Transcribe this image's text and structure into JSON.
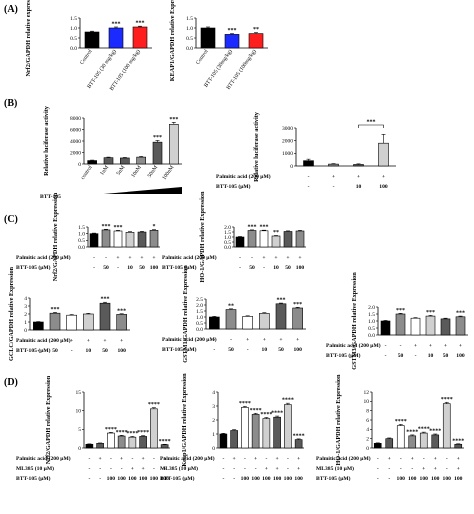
{
  "panel_labels": [
    "(A)",
    "(B)",
    "(C)",
    "(D)"
  ],
  "colors": {
    "black": "#000000",
    "blue": "#1b2bff",
    "red": "#ff1e1e",
    "dgray": "#5a5a5a",
    "mgray": "#8c8c8c",
    "lgray": "#d0d0d0",
    "white": "#ffffff"
  },
  "chart_data": [
    {
      "id": "a1",
      "type": "bar",
      "ylabel": "Nrf2/GAPDH relative expression",
      "categories": [
        "Control",
        "BTT-105 (30 mg/kg)",
        "BTT-105 (100 mg/kg)"
      ],
      "values": [
        0.8,
        1.0,
        1.05
      ],
      "errors": [
        0.04,
        0.05,
        0.04
      ],
      "sig": [
        "",
        "***",
        "***"
      ],
      "colors": [
        "#000000",
        "#1b2bff",
        "#ff1e1e"
      ],
      "ylim": [
        0,
        1.5
      ],
      "yticks": [
        "0.0",
        "0.5",
        "1.0",
        "1.5"
      ]
    },
    {
      "id": "a2",
      "type": "bar",
      "ylabel": "KEAP1/GAPDH relative Expression",
      "categories": [
        "Control",
        "BTT-105 (30mg/kg)",
        "BTT-105 (100mg/kg)"
      ],
      "values": [
        1.0,
        0.68,
        0.72
      ],
      "errors": [
        0.05,
        0.04,
        0.05
      ],
      "sig": [
        "",
        "***",
        "**"
      ],
      "colors": [
        "#000000",
        "#1b2bff",
        "#ff1e1e"
      ],
      "ylim": [
        0,
        1.5
      ],
      "yticks": [
        "0.0",
        "0.5",
        "1.0",
        "1.5"
      ]
    },
    {
      "id": "b1",
      "type": "bar",
      "ylabel": "Relative luciferase activity",
      "categories": [
        "control",
        "1nM",
        "5nM",
        "10nM",
        "50nM",
        "100nM"
      ],
      "values": [
        600,
        1100,
        1050,
        1200,
        3800,
        6900
      ],
      "errors": [
        80,
        100,
        90,
        120,
        300,
        350
      ],
      "sig": [
        "",
        "",
        "",
        "",
        "***",
        "***"
      ],
      "colors": [
        "#000000",
        "#5a5a5a",
        "#5a5a5a",
        "#8c8c8c",
        "#5a5a5a",
        "#d0d0d0"
      ],
      "ylim": [
        0,
        8000
      ],
      "yticks": [
        "0",
        "2000",
        "4000",
        "6000",
        "8000"
      ],
      "conditions": [
        {
          "label": "BTT-105",
          "values": []
        }
      ]
    },
    {
      "id": "b2",
      "type": "bar",
      "ylabel": "Relative luciferase activity",
      "categories": [
        "1",
        "2",
        "3",
        "4"
      ],
      "values": [
        420,
        150,
        120,
        1800
      ],
      "errors": [
        120,
        40,
        50,
        700
      ],
      "sig": [
        "",
        "",
        "",
        ""
      ],
      "bracket": "***",
      "colors": [
        "#000000",
        "#8c8c8c",
        "#5a5a5a",
        "#d0d0d0"
      ],
      "ylim": [
        0,
        3000
      ],
      "yticks": [
        "0",
        "1000",
        "2000",
        "3000"
      ],
      "conditions": [
        {
          "label": "Palmitic acid (200 μM)",
          "values": [
            "-",
            "+",
            "+",
            "+"
          ]
        },
        {
          "label": "BTT-105 (μM)",
          "values": [
            "-",
            "-",
            "10",
            "100"
          ]
        }
      ]
    },
    {
      "id": "c1",
      "type": "bar",
      "ylabel": "Nrf2/GAPDH relative Expression",
      "categories": [
        "1",
        "2",
        "3",
        "4",
        "5",
        "6"
      ],
      "values": [
        1.0,
        1.28,
        1.2,
        1.1,
        1.12,
        1.25
      ],
      "errors": [
        0.04,
        0.05,
        0.05,
        0.05,
        0.05,
        0.05
      ],
      "sig": [
        "",
        "***",
        "***",
        "",
        "",
        "*"
      ],
      "colors": [
        "#000000",
        "#8c8c8c",
        "#ffffff",
        "#d0d0d0",
        "#5a5a5a",
        "#8c8c8c"
      ],
      "ylim": [
        0,
        1.5
      ],
      "yticks": [
        "0.0",
        "0.5",
        "1.0",
        "1.5"
      ],
      "conditions": [
        {
          "label": "Palmitic acid (200 μM)",
          "values": [
            "-",
            "-",
            "+",
            "+",
            "+",
            "+"
          ]
        },
        {
          "label": "BTT-105 (μM)",
          "values": [
            "-",
            "50",
            "-",
            "10",
            "50",
            "100"
          ]
        }
      ]
    },
    {
      "id": "c2",
      "type": "bar",
      "ylabel": "HO-1/GAPDH relative Expression",
      "categories": [
        "1",
        "2",
        "3",
        "4",
        "5",
        "6"
      ],
      "values": [
        1.0,
        1.65,
        1.62,
        1.1,
        1.55,
        1.6
      ],
      "errors": [
        0.05,
        0.06,
        0.06,
        0.05,
        0.06,
        0.06
      ],
      "sig": [
        "",
        "***",
        "***",
        "**",
        "",
        ""
      ],
      "colors": [
        "#000000",
        "#8c8c8c",
        "#ffffff",
        "#d0d0d0",
        "#5a5a5a",
        "#8c8c8c"
      ],
      "ylim": [
        0,
        2.0
      ],
      "yticks": [
        "0.0",
        "0.5",
        "1.0",
        "1.5",
        "2.0"
      ],
      "conditions": [
        {
          "label": "Palmitic acid (200 μM)",
          "values": [
            "-",
            "-",
            "+",
            "+",
            "+",
            "+"
          ]
        },
        {
          "label": "BTT-105 (μM)",
          "values": [
            "-",
            "50",
            "-",
            "10",
            "50",
            "100"
          ]
        }
      ]
    },
    {
      "id": "c3",
      "type": "bar",
      "ylabel": "GCLC/GAPDH relative Expression",
      "categories": [
        "1",
        "2",
        "3",
        "4",
        "5",
        "6"
      ],
      "values": [
        1.0,
        2.1,
        1.85,
        2.0,
        3.35,
        1.95
      ],
      "errors": [
        0.05,
        0.1,
        0.08,
        0.08,
        0.12,
        0.08
      ],
      "sig": [
        "",
        "***",
        "",
        "",
        "***",
        "***"
      ],
      "colors": [
        "#000000",
        "#8c8c8c",
        "#ffffff",
        "#d0d0d0",
        "#5a5a5a",
        "#8c8c8c"
      ],
      "ylim": [
        0,
        4
      ],
      "yticks": [
        "0",
        "1",
        "2",
        "3",
        "4"
      ],
      "conditions": [
        {
          "label": "Palmitic acid (200 μM)",
          "values": [
            "-",
            "-",
            "+",
            "+",
            "+",
            "+"
          ]
        },
        {
          "label": "BTT-105 (μM)",
          "values": [
            "-",
            "50",
            "-",
            "10",
            "50",
            "100"
          ]
        }
      ]
    },
    {
      "id": "c4",
      "type": "bar",
      "ylabel": "GSTM1/GAPDH relative Expression",
      "categories": [
        "1",
        "2",
        "3",
        "4",
        "5",
        "6"
      ],
      "values": [
        1.0,
        1.62,
        1.05,
        1.3,
        2.1,
        1.75
      ],
      "errors": [
        0.05,
        0.06,
        0.05,
        0.06,
        0.06,
        0.06
      ],
      "sig": [
        "",
        "**",
        "",
        "",
        "***",
        "***"
      ],
      "colors": [
        "#000000",
        "#8c8c8c",
        "#ffffff",
        "#d0d0d0",
        "#5a5a5a",
        "#8c8c8c"
      ],
      "ylim": [
        0,
        2.5
      ],
      "yticks": [
        "0.0",
        "0.5",
        "1.0",
        "1.5",
        "2.0",
        "2.5"
      ],
      "conditions": [
        {
          "label": "Palmitic acid (200 μM)",
          "values": [
            "-",
            "-",
            "+",
            "+",
            "+",
            "+"
          ]
        },
        {
          "label": "BTT-105 (μM)",
          "values": [
            "-",
            "50",
            "-",
            "10",
            "50",
            "100"
          ]
        }
      ]
    },
    {
      "id": "c5",
      "type": "bar",
      "ylabel": "GSTM3/GAPDH relative Expression",
      "categories": [
        "1",
        "2",
        "3",
        "4",
        "5",
        "6"
      ],
      "values": [
        1.0,
        1.5,
        1.2,
        1.35,
        1.15,
        1.3
      ],
      "errors": [
        0.04,
        0.05,
        0.04,
        0.05,
        0.05,
        0.05
      ],
      "sig": [
        "",
        "***",
        "",
        "***",
        "",
        "***"
      ],
      "colors": [
        "#000000",
        "#8c8c8c",
        "#ffffff",
        "#d0d0d0",
        "#5a5a5a",
        "#8c8c8c"
      ],
      "ylim": [
        0,
        2.0
      ],
      "yticks": [
        "0.0",
        "0.5",
        "1.0",
        "1.5",
        "2.0"
      ],
      "conditions": [
        {
          "label": "Palmitic acid (200 μM)",
          "values": [
            "-",
            "-",
            "+",
            "+",
            "+",
            "+"
          ]
        },
        {
          "label": "BTT-105 (μM)",
          "values": [
            "-",
            "50",
            "-",
            "10",
            "50",
            "100"
          ]
        }
      ]
    },
    {
      "id": "d1",
      "type": "bar",
      "ylabel": "Nrf2/GAPDH relative Expression",
      "categories": [
        "1",
        "2",
        "3",
        "4",
        "5",
        "6",
        "7",
        "8"
      ],
      "values": [
        1.0,
        1.25,
        4.0,
        3.2,
        2.9,
        3.1,
        10.5,
        0.9
      ],
      "errors": [
        0.1,
        0.1,
        0.2,
        0.2,
        0.2,
        0.2,
        0.3,
        0.1
      ],
      "sig": [
        "",
        "",
        "****",
        "****",
        "****",
        "****",
        "****",
        "****"
      ],
      "colors": [
        "#000000",
        "#5a5a5a",
        "#ffffff",
        "#8c8c8c",
        "#d0d0d0",
        "#5a5a5a",
        "#d0d0d0",
        "#5a5a5a"
      ],
      "ylim": [
        0,
        15
      ],
      "yticks": [
        "0",
        "5",
        "10",
        "15"
      ],
      "conditions": [
        {
          "label": "Palmitic acid (200 μM)",
          "values": [
            "-",
            "+",
            "-",
            "+",
            "-",
            "+",
            "-",
            "+"
          ]
        },
        {
          "label": "ML385 (10 μM)",
          "values": [
            "-",
            "-",
            "-",
            "-",
            "+",
            "+",
            "-",
            "+"
          ]
        },
        {
          "label": "BTT-105 (μM)",
          "values": [
            "-",
            "-",
            "100",
            "100",
            "100",
            "100",
            "100",
            "100"
          ]
        }
      ]
    },
    {
      "id": "d2",
      "type": "bar",
      "ylabel": "Keap1/GAPDH relative Expression",
      "categories": [
        "1",
        "2",
        "3",
        "4",
        "5",
        "6",
        "7",
        "8"
      ],
      "values": [
        1.0,
        1.25,
        2.9,
        2.4,
        2.1,
        2.2,
        3.1,
        0.6
      ],
      "errors": [
        0.05,
        0.06,
        0.08,
        0.08,
        0.08,
        0.08,
        0.1,
        0.05
      ],
      "sig": [
        "",
        "",
        "****",
        "****",
        "****",
        "****",
        "****",
        "****"
      ],
      "colors": [
        "#000000",
        "#5a5a5a",
        "#ffffff",
        "#8c8c8c",
        "#d0d0d0",
        "#5a5a5a",
        "#d0d0d0",
        "#5a5a5a"
      ],
      "ylim": [
        0,
        4
      ],
      "yticks": [
        "0",
        "1",
        "2",
        "3",
        "4"
      ],
      "conditions": [
        {
          "label": "Palmitic acid (200 μM)",
          "values": [
            "-",
            "+",
            "-",
            "+",
            "-",
            "+",
            "-",
            "+"
          ]
        },
        {
          "label": "ML385 (10 μM)",
          "values": [
            "-",
            "-",
            "-",
            "-",
            "+",
            "+",
            "-",
            "+"
          ]
        },
        {
          "label": "BTT-105 (μM)",
          "values": [
            "-",
            "-",
            "100",
            "100",
            "100",
            "100",
            "100",
            "100"
          ]
        }
      ]
    },
    {
      "id": "d3",
      "type": "bar",
      "ylabel": "HO-1/GAPDH relative Expression",
      "categories": [
        "1",
        "2",
        "3",
        "4",
        "5",
        "6",
        "7",
        "8"
      ],
      "values": [
        1.0,
        2.0,
        4.8,
        2.6,
        3.2,
        2.8,
        9.5,
        0.8
      ],
      "errors": [
        0.1,
        0.15,
        0.25,
        0.2,
        0.2,
        0.2,
        0.3,
        0.1
      ],
      "sig": [
        "",
        "",
        "****",
        "****",
        "****",
        "****",
        "****",
        "****"
      ],
      "colors": [
        "#000000",
        "#5a5a5a",
        "#ffffff",
        "#8c8c8c",
        "#d0d0d0",
        "#5a5a5a",
        "#d0d0d0",
        "#5a5a5a"
      ],
      "ylim": [
        0,
        12
      ],
      "yticks": [
        "0",
        "2",
        "4",
        "6",
        "8",
        "10",
        "12"
      ],
      "conditions": [
        {
          "label": "Palmitic acid (200 μM)",
          "values": [
            "-",
            "+",
            "-",
            "+",
            "-",
            "+",
            "-",
            "+"
          ]
        },
        {
          "label": "ML385 (10 μM)",
          "values": [
            "-",
            "-",
            "-",
            "-",
            "+",
            "+",
            "-",
            "+"
          ]
        },
        {
          "label": "BTT-105 (μM)",
          "values": [
            "-",
            "-",
            "100",
            "100",
            "100",
            "100",
            "100",
            "100"
          ]
        }
      ]
    }
  ]
}
